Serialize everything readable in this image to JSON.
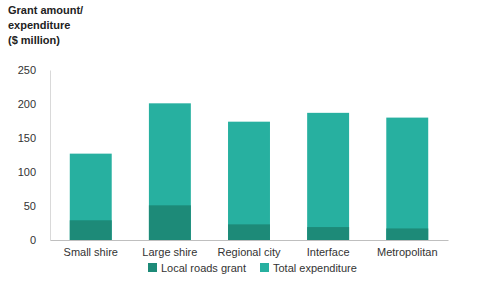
{
  "chart_data": {
    "type": "bar",
    "ylabel": [
      "Grant amount/",
      "expenditure",
      "($ million)"
    ],
    "categories": [
      "Small shire",
      "Large shire",
      "Regional city",
      "Interface",
      "Metropolitan"
    ],
    "series": [
      {
        "name": "Local roads grant",
        "color": "#1d8a78",
        "values": [
          29,
          51,
          23,
          19,
          17
        ]
      },
      {
        "name": "Total expenditure",
        "color": "#27b0a0",
        "values": [
          127,
          201,
          174,
          187,
          180
        ]
      }
    ],
    "stacked": false,
    "ylim": [
      0,
      250
    ],
    "yticks": [
      0,
      50,
      100,
      150,
      200,
      250
    ],
    "grid": false,
    "legend": "bottom"
  }
}
